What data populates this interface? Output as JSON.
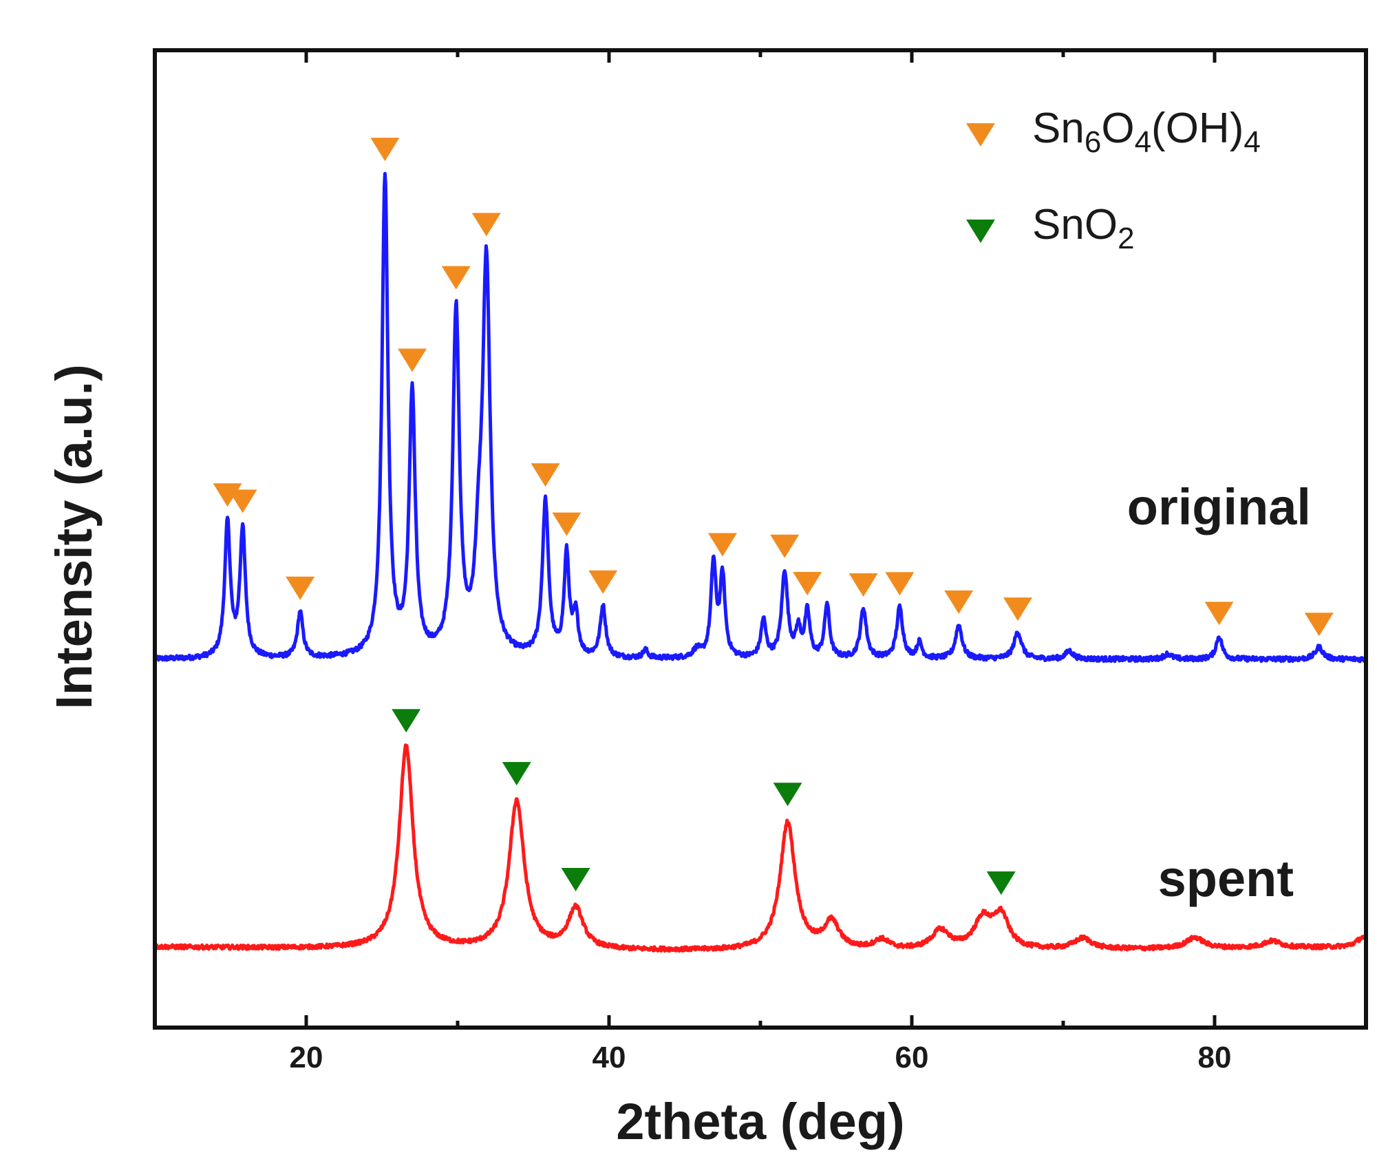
{
  "chart_data": {
    "type": "line",
    "xlabel": "2theta (deg)",
    "ylabel": "Intensity (a.u.)",
    "xlim": [
      10,
      90
    ],
    "xticks": [
      20,
      40,
      60,
      80
    ],
    "xtick_labels": [
      "20",
      "40",
      "60",
      "80"
    ],
    "yticks_shown": false,
    "legend": {
      "placement": "top-right",
      "entries": [
        {
          "name": "Sn6O4(OH)4",
          "base": "Sn",
          "sub1": "6",
          "mid1": "O",
          "sub2": "4",
          "mid2": "(OH)",
          "sub3": "4",
          "color": "#f28b1e",
          "marker": "down-triangle"
        },
        {
          "name": "SnO2",
          "base": "SnO",
          "sub1": "2",
          "color": "#0a7d0a",
          "marker": "down-triangle"
        }
      ]
    },
    "series": [
      {
        "name": "original",
        "color": "#1a1aff",
        "baseline": 1.0,
        "marker_phase": "Sn6O4(OH)4",
        "peaks": [
          {
            "x": 14.8,
            "h": 1.0,
            "w": 0.22,
            "marker": true
          },
          {
            "x": 15.8,
            "h": 0.95,
            "w": 0.22,
            "marker": true
          },
          {
            "x": 19.6,
            "h": 0.34,
            "w": 0.22,
            "marker": true
          },
          {
            "x": 25.2,
            "h": 3.56,
            "w": 0.24,
            "marker": true
          },
          {
            "x": 27.0,
            "h": 1.95,
            "w": 0.24,
            "marker": true
          },
          {
            "x": 29.9,
            "h": 2.55,
            "w": 0.26,
            "marker": true
          },
          {
            "x": 31.9,
            "h": 2.85,
            "w": 0.3,
            "marker": true
          },
          {
            "x": 31.4,
            "h": 0.55,
            "w": 0.3,
            "marker": false
          },
          {
            "x": 35.8,
            "h": 1.15,
            "w": 0.24,
            "marker": true
          },
          {
            "x": 37.2,
            "h": 0.75,
            "w": 0.2,
            "marker": true
          },
          {
            "x": 37.8,
            "h": 0.3,
            "w": 0.2,
            "marker": false
          },
          {
            "x": 39.6,
            "h": 0.38,
            "w": 0.22,
            "marker": true
          },
          {
            "x": 42.4,
            "h": 0.06,
            "w": 0.2,
            "marker": false
          },
          {
            "x": 45.8,
            "h": 0.06,
            "w": 0.3,
            "marker": false
          },
          {
            "x": 46.9,
            "h": 0.7,
            "w": 0.2,
            "marker": false
          },
          {
            "x": 47.5,
            "h": 0.6,
            "w": 0.2,
            "marker": true
          },
          {
            "x": 50.2,
            "h": 0.28,
            "w": 0.2,
            "marker": false
          },
          {
            "x": 51.6,
            "h": 0.64,
            "w": 0.24,
            "marker": true
          },
          {
            "x": 52.5,
            "h": 0.2,
            "w": 0.2,
            "marker": false
          },
          {
            "x": 53.1,
            "h": 0.34,
            "w": 0.2,
            "marker": true
          },
          {
            "x": 54.4,
            "h": 0.4,
            "w": 0.2,
            "marker": false
          },
          {
            "x": 56.8,
            "h": 0.37,
            "w": 0.24,
            "marker": true
          },
          {
            "x": 59.2,
            "h": 0.38,
            "w": 0.24,
            "marker": true
          },
          {
            "x": 60.5,
            "h": 0.12,
            "w": 0.2,
            "marker": false
          },
          {
            "x": 63.1,
            "h": 0.25,
            "w": 0.26,
            "marker": true
          },
          {
            "x": 67.0,
            "h": 0.2,
            "w": 0.3,
            "marker": true
          },
          {
            "x": 70.4,
            "h": 0.06,
            "w": 0.3,
            "marker": false
          },
          {
            "x": 76.9,
            "h": 0.04,
            "w": 0.3,
            "marker": false
          },
          {
            "x": 80.3,
            "h": 0.17,
            "w": 0.24,
            "marker": true
          },
          {
            "x": 86.9,
            "h": 0.09,
            "w": 0.3,
            "marker": true
          }
        ]
      },
      {
        "name": "spent",
        "color": "#ff1a1a",
        "baseline": 0.0,
        "marker_phase": "SnO2",
        "peaks": [
          {
            "x": 26.6,
            "h": 1.5,
            "w": 0.55,
            "marker": true
          },
          {
            "x": 33.9,
            "h": 1.1,
            "w": 0.6,
            "marker": true
          },
          {
            "x": 37.8,
            "h": 0.3,
            "w": 0.6,
            "marker": true
          },
          {
            "x": 51.8,
            "h": 0.95,
            "w": 0.6,
            "marker": true
          },
          {
            "x": 54.7,
            "h": 0.2,
            "w": 0.6,
            "marker": false
          },
          {
            "x": 58.0,
            "h": 0.07,
            "w": 0.6,
            "marker": false
          },
          {
            "x": 61.9,
            "h": 0.14,
            "w": 0.7,
            "marker": false
          },
          {
            "x": 64.7,
            "h": 0.22,
            "w": 0.7,
            "marker": false
          },
          {
            "x": 65.9,
            "h": 0.24,
            "w": 0.6,
            "marker": true
          },
          {
            "x": 71.3,
            "h": 0.08,
            "w": 0.7,
            "marker": false
          },
          {
            "x": 78.7,
            "h": 0.08,
            "w": 0.7,
            "marker": false
          },
          {
            "x": 83.8,
            "h": 0.05,
            "w": 0.7,
            "marker": false
          },
          {
            "x": 89.8,
            "h": 0.07,
            "w": 0.5,
            "marker": false
          }
        ]
      }
    ]
  }
}
